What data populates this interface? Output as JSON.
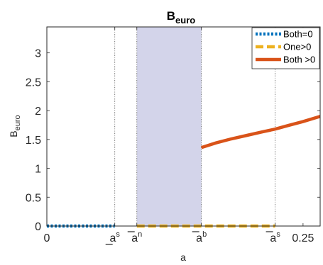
{
  "chart_data": {
    "type": "line",
    "title": "B",
    "title_sub": "euro",
    "xlabel": "a",
    "ylabel": "B",
    "ylabel_sub": "euro",
    "xlim": [
      0,
      0.2667
    ],
    "ylim": [
      0,
      3.45
    ],
    "grid": false,
    "legend_position": "top-right",
    "y_ticks": [
      0,
      0.5,
      1,
      1.5,
      2,
      2.5,
      3
    ],
    "y_tick_labels": [
      "0",
      "0.5",
      "1",
      "1.5",
      "2",
      "2.5",
      "3"
    ],
    "x_ticks": [
      {
        "value": 0,
        "base": "0",
        "sup": "",
        "bar": "",
        "kind": "number"
      },
      {
        "value": 0.0663,
        "base": "a",
        "sup": "s",
        "bar": "under",
        "kind": "marker"
      },
      {
        "value": 0.0878,
        "base": "a",
        "sup": "n",
        "bar": "over",
        "kind": "marker"
      },
      {
        "value": 0.1508,
        "base": "a",
        "sup": "b",
        "bar": "over",
        "kind": "marker"
      },
      {
        "value": 0.2228,
        "base": "a",
        "sup": "s",
        "bar": "over",
        "kind": "marker"
      },
      {
        "value": 0.25,
        "base": "0.25",
        "sup": "",
        "bar": "",
        "kind": "number"
      }
    ],
    "vertical_lines": [
      0.0663,
      0.0878,
      0.1508,
      0.2228
    ],
    "shaded_region": {
      "x": [
        0.0878,
        0.1508
      ],
      "color": "#d3d4ea"
    },
    "series": [
      {
        "name": "Both=0",
        "color": "#0072bd",
        "style": "dotted",
        "x": [
          0,
          0.0663
        ],
        "y": [
          0,
          0
        ]
      },
      {
        "name": "One>0",
        "color": "#edb120",
        "style": "dashed",
        "x": [
          0.0878,
          0.2228
        ],
        "y": [
          0,
          0
        ]
      },
      {
        "name": "Both >0",
        "color": "#d95319",
        "style": "solid",
        "x": [
          0.1508,
          0.165,
          0.18,
          0.195,
          0.21,
          0.2228,
          0.235,
          0.25,
          0.2667
        ],
        "y": [
          1.36,
          1.44,
          1.51,
          1.57,
          1.63,
          1.68,
          1.74,
          1.81,
          1.9
        ]
      }
    ]
  }
}
